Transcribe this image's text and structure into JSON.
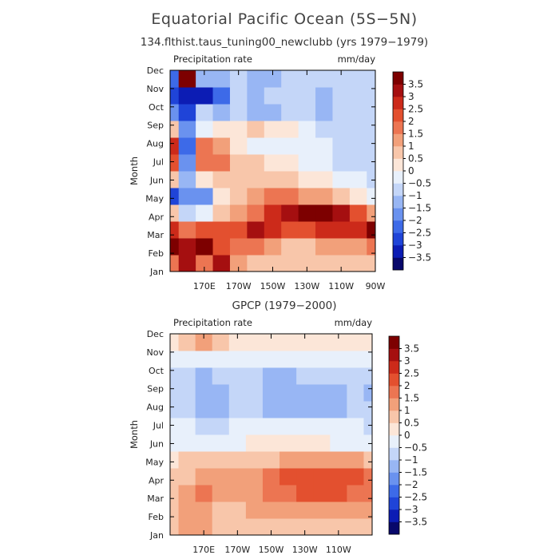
{
  "figure": {
    "title": "Equatorial Pacific Ocean (5S−5N)",
    "colorbar_colors": [
      "#08086b",
      "#0c1cb4",
      "#1f44d8",
      "#3d6ae8",
      "#6a92ef",
      "#98b6f4",
      "#c4d6f8",
      "#e8f0fb",
      "#fce6d8",
      "#f8c6aa",
      "#f2a07a",
      "#ec7552",
      "#e3502f",
      "#cc2a1a",
      "#a50f10",
      "#7d0000"
    ],
    "colorbar_labels": [
      "3.5",
      "3",
      "2.5",
      "2",
      "1.5",
      "1",
      "0.5",
      "0",
      "−0.5",
      "−1",
      "−1.5",
      "−2",
      "−2.5",
      "−3",
      "−3.5"
    ]
  },
  "chart_data": [
    {
      "type": "heatmap",
      "subtitle": "134.flthist.taus_tuning00_newclubb (yrs 1979−1979)",
      "label_left": "Precipitation rate",
      "label_right": "mm/day",
      "ylabel": "Month",
      "y_ticks": [
        "Jan",
        "Feb",
        "Mar",
        "Apr",
        "May",
        "Jun",
        "Jul",
        "Aug",
        "Sep",
        "Oct",
        "Nov",
        "Dec"
      ],
      "x_ticks": [
        "170E",
        "170W",
        "150W",
        "130W",
        "110W",
        "90W"
      ],
      "x_tick_lon": [
        170,
        190,
        210,
        230,
        250,
        270
      ],
      "xlim": [
        150,
        270
      ],
      "levels": [
        -3.5,
        -3,
        -2.5,
        -2,
        -1.5,
        -1,
        -0.5,
        0,
        0.5,
        1,
        1.5,
        2,
        2.5,
        3,
        3.5
      ],
      "lon": [
        150,
        160,
        170,
        180,
        190,
        200,
        210,
        220,
        230,
        240,
        250,
        260,
        270
      ],
      "grid": [
        [
          1.5,
          3.0,
          1.5,
          3.0,
          1.0,
          0.5,
          0.5,
          0.5,
          0.5,
          0.5,
          0.5,
          0.5,
          0.5
        ],
        [
          3.5,
          3.0,
          3.5,
          2.0,
          1.5,
          1.5,
          1.0,
          0.5,
          0.5,
          1.0,
          1.0,
          1.0,
          1.5
        ],
        [
          2.5,
          1.5,
          2.0,
          2.0,
          2.0,
          3.0,
          2.5,
          2.0,
          2.0,
          2.5,
          2.5,
          2.5,
          3.5
        ],
        [
          0.5,
          -1.0,
          -0.5,
          0.5,
          1.0,
          1.5,
          2.5,
          3.0,
          3.8,
          3.5,
          3.0,
          2.0,
          1.0
        ],
        [
          -3.0,
          -2.0,
          -2.0,
          0.0,
          0.5,
          1.0,
          1.5,
          1.5,
          1.0,
          1.0,
          0.5,
          0.0,
          -0.5
        ],
        [
          0.5,
          -1.5,
          0.0,
          0.5,
          0.5,
          0.5,
          0.5,
          0.5,
          0.0,
          0.0,
          -0.5,
          -0.5,
          -1.0
        ],
        [
          2.0,
          -2.0,
          1.5,
          1.5,
          0.5,
          0.5,
          0.0,
          0.0,
          -0.5,
          -0.5,
          -1.0,
          -1.0,
          -1.0
        ],
        [
          2.5,
          -2.5,
          1.5,
          1.0,
          0.0,
          -0.5,
          -0.5,
          -0.5,
          -0.5,
          -0.5,
          -1.0,
          -1.0,
          -1.0
        ],
        [
          0.5,
          -2.0,
          -0.5,
          0.0,
          0.0,
          0.5,
          0.0,
          0.0,
          -0.5,
          -1.0,
          -1.0,
          -1.0,
          -1.0
        ],
        [
          -2.0,
          -3.0,
          -1.0,
          -1.5,
          -1.0,
          -1.5,
          -1.5,
          -1.0,
          -1.0,
          -1.5,
          -1.0,
          -1.0,
          -1.0
        ],
        [
          -3.0,
          -3.5,
          -3.5,
          -2.5,
          -1.0,
          -1.5,
          -1.0,
          -1.0,
          -1.0,
          -1.5,
          -1.0,
          -1.0,
          -1.0
        ],
        [
          -2.5,
          3.5,
          -1.5,
          -1.5,
          -1.0,
          -1.5,
          -1.5,
          -1.0,
          -1.0,
          -1.0,
          -1.0,
          -1.0,
          -1.0
        ]
      ]
    },
    {
      "type": "heatmap",
      "subtitle": "GPCP (1979−2000)",
      "label_left": "Precipitation rate",
      "label_right": "mm/day",
      "ylabel": "Month",
      "y_ticks": [
        "Jan",
        "Feb",
        "Mar",
        "Apr",
        "May",
        "Jun",
        "Jul",
        "Aug",
        "Sep",
        "Oct",
        "Nov",
        "Dec"
      ],
      "x_ticks": [
        "170E",
        "170W",
        "150W",
        "130W",
        "110W"
      ],
      "x_tick_lon": [
        170,
        190,
        210,
        230,
        250
      ],
      "xlim": [
        150,
        270
      ],
      "levels": [
        -3.5,
        -3,
        -2.5,
        -2,
        -1.5,
        -1,
        -0.5,
        0,
        0.5,
        1,
        1.5,
        2,
        2.5,
        3,
        3.5
      ],
      "lon": [
        150,
        160,
        170,
        180,
        190,
        200,
        210,
        220,
        230,
        240,
        250,
        260,
        270
      ],
      "grid": [
        [
          0.5,
          1.0,
          1.0,
          0.5,
          0.5,
          0.5,
          0.5,
          0.5,
          0.5,
          0.5,
          0.5,
          0.5,
          0.5
        ],
        [
          0.5,
          1.0,
          1.0,
          0.5,
          0.5,
          1.0,
          1.0,
          1.0,
          1.0,
          1.0,
          1.0,
          1.0,
          1.0
        ],
        [
          0.5,
          1.0,
          1.5,
          1.0,
          1.0,
          1.0,
          1.5,
          1.5,
          2.0,
          2.0,
          2.0,
          1.5,
          1.5
        ],
        [
          0.5,
          0.5,
          1.0,
          1.0,
          1.0,
          1.0,
          1.5,
          2.0,
          2.0,
          2.0,
          2.0,
          2.0,
          1.5
        ],
        [
          0.0,
          0.5,
          0.5,
          0.5,
          0.5,
          0.5,
          0.5,
          1.0,
          1.0,
          1.0,
          1.0,
          1.0,
          0.5
        ],
        [
          -0.5,
          -0.5,
          -0.5,
          -0.5,
          -0.5,
          0.0,
          0.0,
          0.0,
          0.0,
          0.0,
          -0.5,
          -0.5,
          -0.5
        ],
        [
          -0.5,
          -0.5,
          -1.0,
          -1.0,
          -0.5,
          -0.5,
          -0.5,
          -0.5,
          -0.5,
          -0.5,
          -0.5,
          -0.5,
          -1.0
        ],
        [
          -1.0,
          -1.0,
          -1.5,
          -1.5,
          -1.0,
          -1.0,
          -1.5,
          -1.5,
          -1.5,
          -1.5,
          -1.5,
          -1.0,
          -1.0
        ],
        [
          -1.0,
          -1.0,
          -1.5,
          -1.5,
          -1.0,
          -1.0,
          -1.5,
          -1.5,
          -1.5,
          -1.5,
          -1.5,
          -1.0,
          -1.5
        ],
        [
          -1.0,
          -1.0,
          -1.5,
          -1.0,
          -1.0,
          -1.0,
          -1.5,
          -1.5,
          -1.0,
          -1.0,
          -1.0,
          -1.0,
          -1.0
        ],
        [
          -0.5,
          -0.5,
          -0.5,
          -0.5,
          -0.5,
          -0.5,
          -0.5,
          -0.5,
          -0.5,
          -0.5,
          -0.5,
          -0.5,
          -0.5
        ],
        [
          0.0,
          0.5,
          1.0,
          0.5,
          0.0,
          0.0,
          0.0,
          0.0,
          0.0,
          0.0,
          0.0,
          0.0,
          0.0
        ]
      ]
    }
  ]
}
